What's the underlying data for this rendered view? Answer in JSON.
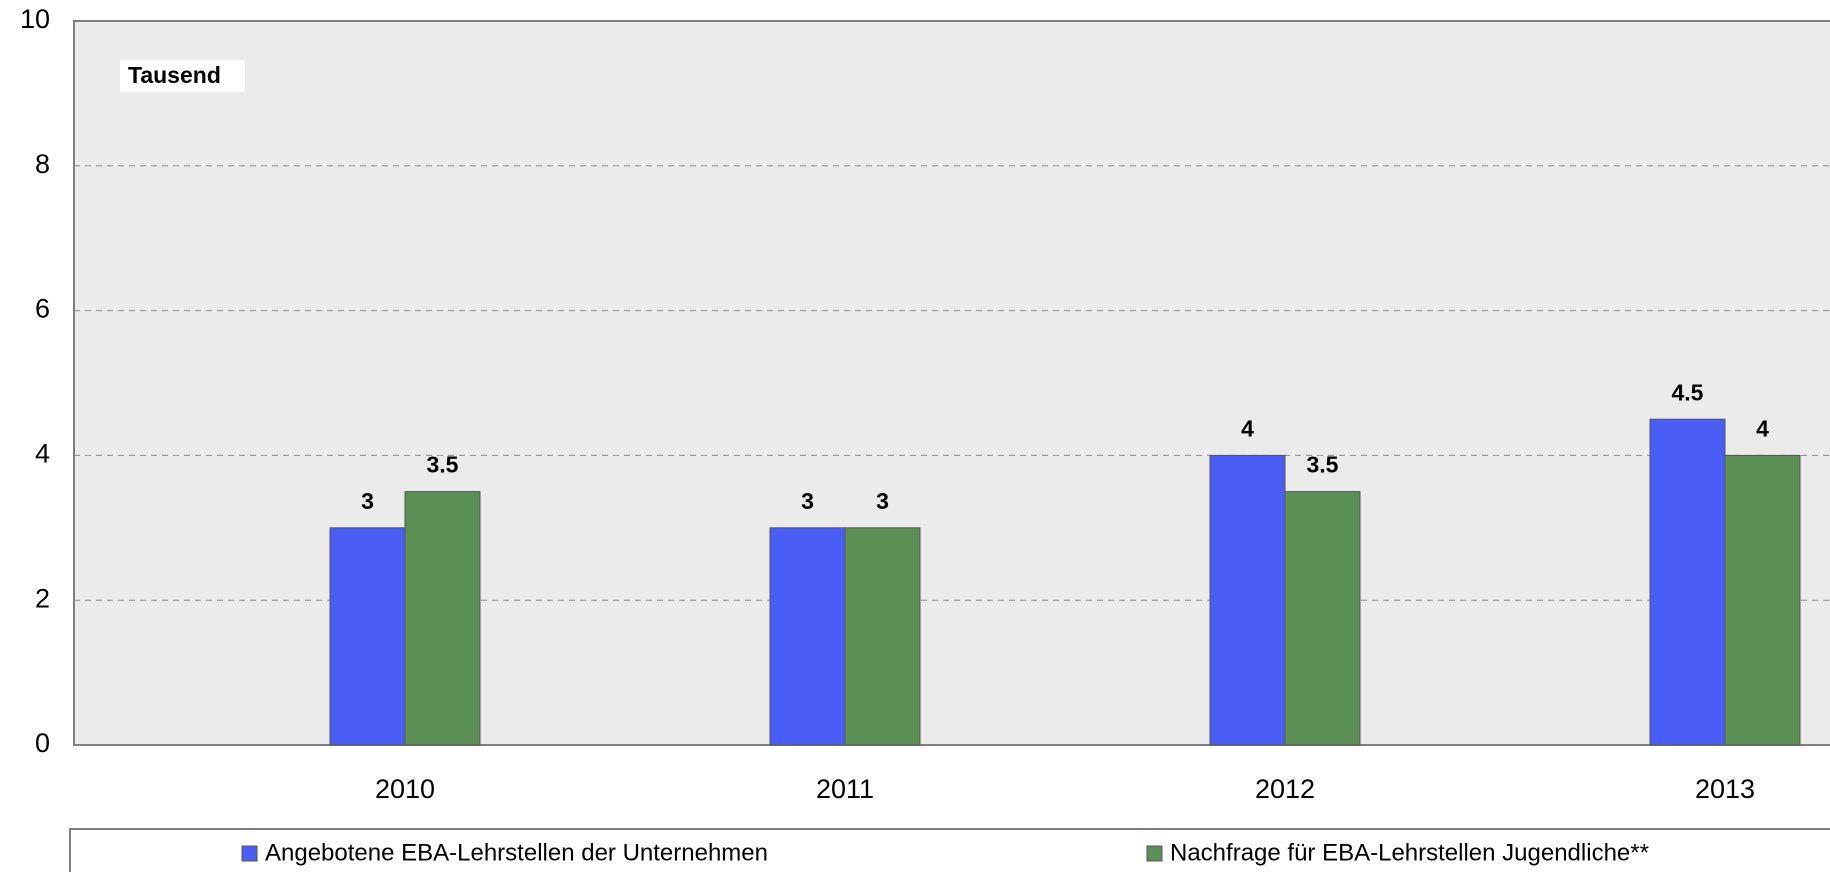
{
  "chart_data": {
    "type": "bar",
    "annotation": "Tausend",
    "categories": [
      "2010",
      "2011",
      "2012",
      "2013"
    ],
    "series": [
      {
        "name": "Angebotene EBA-Lehrstellen der Unternehmen",
        "color": "#4a5ef5",
        "values": [
          3,
          3,
          4,
          4.5
        ]
      },
      {
        "name": "Nachfrage für EBA-Lehrstellen Jugendliche**",
        "color": "#5b8f55",
        "values": [
          3.5,
          3,
          3.5,
          4
        ]
      }
    ],
    "ylim": [
      0,
      10
    ],
    "yticks": [
      0,
      2,
      4,
      6,
      8,
      10
    ],
    "grid": true,
    "legend": "bottom"
  }
}
